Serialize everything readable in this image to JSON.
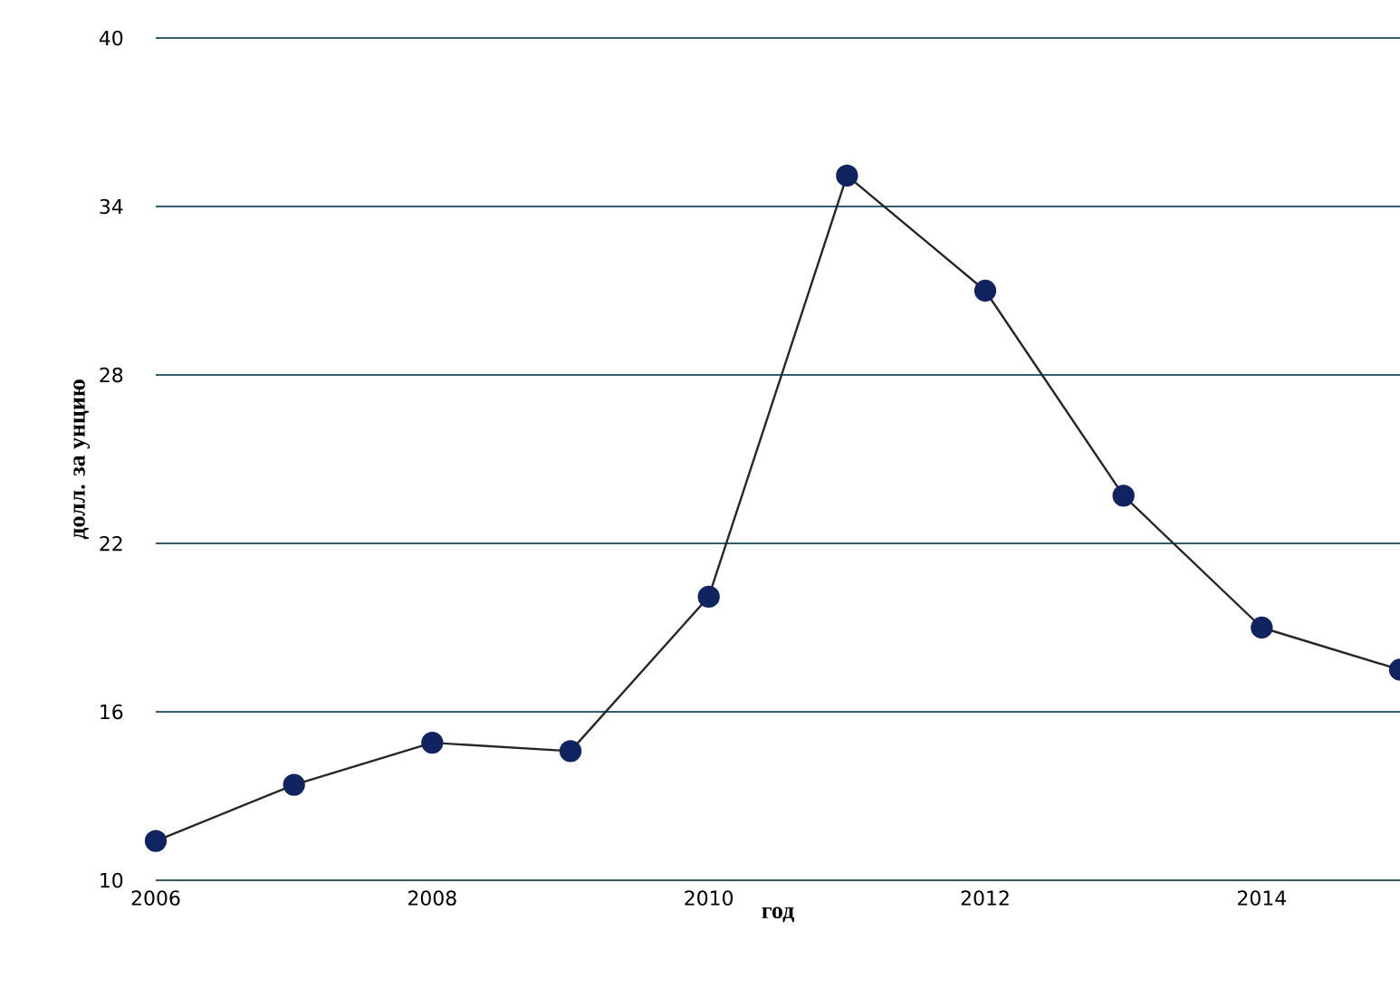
{
  "chart_data": {
    "type": "line",
    "xlabel": "год",
    "ylabel": "долл. за унцию",
    "x": [
      2006,
      2007,
      2008,
      2009,
      2010,
      2011,
      2012,
      2013,
      2014,
      2015
    ],
    "series": [
      {
        "color": "#0f2460",
        "values": [
          11.4,
          13.4,
          14.9,
          14.6,
          20.1,
          35.1,
          31.0,
          23.7,
          19.0,
          17.5
        ]
      }
    ],
    "xlim": [
      2006,
      2015
    ],
    "xticks": [
      2006,
      2008,
      2010,
      2012,
      2014
    ],
    "ylim": [
      10,
      40
    ],
    "yticks": [
      10,
      16,
      22,
      28,
      34,
      40
    ],
    "grid": "y",
    "marker": "circle",
    "line_style": "solid"
  }
}
